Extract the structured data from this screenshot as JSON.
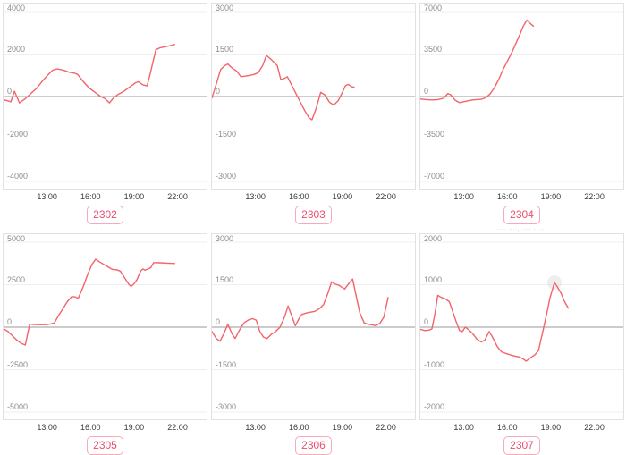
{
  "colors": {
    "series_line": "#f2646b",
    "zero_line": "#9a9a9a",
    "gridline": "#efefef",
    "plot_border": "#e2e2e2",
    "y_label_text": "#8c8c8c",
    "x_label_text": "#3a3a3a",
    "badge_text": "#e94f70",
    "badge_border": "#f6a9bf",
    "highlight_halo": "#d9d9d9"
  },
  "x_axis": {
    "range_hours": [
      10,
      24
    ],
    "ticks": [
      {
        "label": "13:00",
        "hour": 13
      },
      {
        "label": "16:00",
        "hour": 16
      },
      {
        "label": "19:00",
        "hour": 19
      },
      {
        "label": "22:00",
        "hour": 22
      }
    ]
  },
  "chart_data": [
    {
      "type": "line",
      "label": "2302",
      "caption": "·· ··",
      "ylim": [
        -4000,
        4000
      ],
      "yticks": [
        4000,
        2000,
        0,
        -2000,
        -4000
      ],
      "ytick_labels": [
        "4000",
        "2000",
        "0",
        "-2000",
        "-4000"
      ],
      "points": [
        [
          10.0,
          -150
        ],
        [
          10.3,
          -200
        ],
        [
          10.5,
          -250
        ],
        [
          10.75,
          250
        ],
        [
          11.1,
          -300
        ],
        [
          11.5,
          -100
        ],
        [
          11.9,
          150
        ],
        [
          12.3,
          400
        ],
        [
          12.7,
          750
        ],
        [
          13.1,
          1050
        ],
        [
          13.4,
          1250
        ],
        [
          13.7,
          1300
        ],
        [
          14.1,
          1250
        ],
        [
          14.5,
          1150
        ],
        [
          14.9,
          1100
        ],
        [
          15.1,
          1050
        ],
        [
          15.5,
          700
        ],
        [
          15.9,
          400
        ],
        [
          16.3,
          200
        ],
        [
          16.7,
          0
        ],
        [
          17.0,
          -100
        ],
        [
          17.3,
          -300
        ],
        [
          17.6,
          -50
        ],
        [
          17.9,
          100
        ],
        [
          18.3,
          250
        ],
        [
          18.7,
          450
        ],
        [
          19.1,
          650
        ],
        [
          19.3,
          700
        ],
        [
          19.6,
          550
        ],
        [
          19.9,
          500
        ],
        [
          20.1,
          1050
        ],
        [
          20.5,
          2200
        ],
        [
          20.8,
          2300
        ],
        [
          21.2,
          2350
        ],
        [
          21.5,
          2400
        ],
        [
          21.8,
          2450
        ]
      ]
    },
    {
      "type": "line",
      "label": "2303",
      "caption": "·· ··",
      "ylim": [
        -3000,
        3000
      ],
      "yticks": [
        3000,
        1500,
        0,
        -1500,
        -3000
      ],
      "ytick_labels": [
        "3000",
        "1500",
        "0",
        "-1500",
        "-3000"
      ],
      "points": [
        [
          10.0,
          -50
        ],
        [
          10.3,
          450
        ],
        [
          10.6,
          950
        ],
        [
          10.9,
          1100
        ],
        [
          11.1,
          1150
        ],
        [
          11.4,
          1000
        ],
        [
          11.7,
          900
        ],
        [
          12.0,
          700
        ],
        [
          12.3,
          720
        ],
        [
          12.6,
          750
        ],
        [
          12.9,
          780
        ],
        [
          13.2,
          850
        ],
        [
          13.5,
          1100
        ],
        [
          13.75,
          1450
        ],
        [
          14.0,
          1350
        ],
        [
          14.2,
          1250
        ],
        [
          14.5,
          1100
        ],
        [
          14.75,
          600
        ],
        [
          15.0,
          640
        ],
        [
          15.2,
          700
        ],
        [
          15.5,
          400
        ],
        [
          15.8,
          100
        ],
        [
          16.1,
          -200
        ],
        [
          16.4,
          -500
        ],
        [
          16.7,
          -750
        ],
        [
          16.9,
          -820
        ],
        [
          17.2,
          -400
        ],
        [
          17.5,
          150
        ],
        [
          17.8,
          50
        ],
        [
          18.1,
          -200
        ],
        [
          18.4,
          -300
        ],
        [
          18.7,
          -150
        ],
        [
          19.0,
          150
        ],
        [
          19.2,
          380
        ],
        [
          19.4,
          430
        ],
        [
          19.65,
          340
        ],
        [
          19.8,
          330
        ]
      ]
    },
    {
      "type": "line",
      "label": "2304",
      "caption": "·· ··",
      "ylim": [
        -7000,
        7000
      ],
      "yticks": [
        7000,
        3500,
        0,
        -3500,
        -7000
      ],
      "ytick_labels": [
        "7000",
        "3500",
        "0",
        "-3500",
        "-7000"
      ],
      "points": [
        [
          10.0,
          -200
        ],
        [
          10.4,
          -250
        ],
        [
          10.8,
          -280
        ],
        [
          11.2,
          -250
        ],
        [
          11.6,
          -150
        ],
        [
          11.9,
          250
        ],
        [
          12.1,
          150
        ],
        [
          12.4,
          -300
        ],
        [
          12.7,
          -500
        ],
        [
          13.0,
          -430
        ],
        [
          13.3,
          -350
        ],
        [
          13.6,
          -280
        ],
        [
          13.9,
          -250
        ],
        [
          14.2,
          -230
        ],
        [
          14.5,
          -100
        ],
        [
          14.8,
          200
        ],
        [
          15.1,
          700
        ],
        [
          15.4,
          1400
        ],
        [
          15.7,
          2200
        ],
        [
          16.0,
          2900
        ],
        [
          16.3,
          3600
        ],
        [
          16.6,
          4400
        ],
        [
          16.9,
          5200
        ],
        [
          17.1,
          5800
        ],
        [
          17.35,
          6300
        ],
        [
          17.6,
          6000
        ],
        [
          17.8,
          5800
        ]
      ]
    },
    {
      "type": "line",
      "label": "2305",
      "caption": "· ·",
      "ylim": [
        -5000,
        5000
      ],
      "yticks": [
        5000,
        2500,
        0,
        -2500,
        -5000
      ],
      "ytick_labels": [
        "5000",
        "2500",
        "0",
        "-2500",
        "-5000"
      ],
      "points": [
        [
          10.0,
          -100
        ],
        [
          10.3,
          -250
        ],
        [
          10.6,
          -500
        ],
        [
          10.9,
          -750
        ],
        [
          11.2,
          -950
        ],
        [
          11.5,
          -1050
        ],
        [
          11.8,
          180
        ],
        [
          12.1,
          160
        ],
        [
          12.5,
          150
        ],
        [
          12.9,
          150
        ],
        [
          13.2,
          180
        ],
        [
          13.5,
          250
        ],
        [
          13.8,
          700
        ],
        [
          14.1,
          1100
        ],
        [
          14.4,
          1500
        ],
        [
          14.7,
          1800
        ],
        [
          14.95,
          1780
        ],
        [
          15.15,
          1700
        ],
        [
          15.5,
          2400
        ],
        [
          15.8,
          3100
        ],
        [
          16.1,
          3700
        ],
        [
          16.35,
          4000
        ],
        [
          16.6,
          3850
        ],
        [
          16.9,
          3700
        ],
        [
          17.2,
          3550
        ],
        [
          17.5,
          3400
        ],
        [
          17.8,
          3380
        ],
        [
          18.05,
          3300
        ],
        [
          18.35,
          2900
        ],
        [
          18.65,
          2500
        ],
        [
          18.8,
          2400
        ],
        [
          19.0,
          2550
        ],
        [
          19.2,
          2800
        ],
        [
          19.45,
          3300
        ],
        [
          19.6,
          3420
        ],
        [
          19.75,
          3350
        ],
        [
          19.95,
          3420
        ],
        [
          20.15,
          3500
        ],
        [
          20.35,
          3800
        ],
        [
          20.8,
          3790
        ],
        [
          21.3,
          3770
        ],
        [
          21.8,
          3750
        ]
      ]
    },
    {
      "type": "line",
      "label": "2306",
      "caption": "· ·",
      "ylim": [
        -3000,
        3000
      ],
      "yticks": [
        3000,
        1500,
        0,
        -1500,
        -3000
      ],
      "ytick_labels": [
        "3000",
        "1500",
        "0",
        "-1500",
        "-3000"
      ],
      "points": [
        [
          10.0,
          -150
        ],
        [
          10.3,
          -400
        ],
        [
          10.55,
          -500
        ],
        [
          10.8,
          -250
        ],
        [
          11.1,
          100
        ],
        [
          11.4,
          -250
        ],
        [
          11.6,
          -400
        ],
        [
          11.9,
          -100
        ],
        [
          12.2,
          150
        ],
        [
          12.5,
          250
        ],
        [
          12.8,
          300
        ],
        [
          13.05,
          250
        ],
        [
          13.3,
          -150
        ],
        [
          13.55,
          -350
        ],
        [
          13.8,
          -400
        ],
        [
          14.1,
          -250
        ],
        [
          14.4,
          -150
        ],
        [
          14.7,
          0
        ],
        [
          15.0,
          350
        ],
        [
          15.25,
          750
        ],
        [
          15.5,
          400
        ],
        [
          15.75,
          50
        ],
        [
          16.0,
          300
        ],
        [
          16.2,
          450
        ],
        [
          16.5,
          500
        ],
        [
          16.8,
          530
        ],
        [
          17.1,
          560
        ],
        [
          17.4,
          650
        ],
        [
          17.7,
          800
        ],
        [
          18.0,
          1200
        ],
        [
          18.25,
          1600
        ],
        [
          18.5,
          1520
        ],
        [
          18.75,
          1480
        ],
        [
          19.0,
          1400
        ],
        [
          19.15,
          1350
        ],
        [
          19.45,
          1550
        ],
        [
          19.7,
          1700
        ],
        [
          19.95,
          1100
        ],
        [
          20.2,
          500
        ],
        [
          20.5,
          150
        ],
        [
          20.8,
          100
        ],
        [
          21.1,
          80
        ],
        [
          21.3,
          50
        ],
        [
          21.6,
          150
        ],
        [
          21.85,
          350
        ],
        [
          22.15,
          1050
        ]
      ]
    },
    {
      "type": "line",
      "label": "2307",
      "caption": "···· ····, ···· ·· ··",
      "ylim": [
        -2000,
        2000
      ],
      "yticks": [
        2000,
        1000,
        0,
        -1000,
        -2000
      ],
      "ytick_labels": [
        "2000",
        "1000",
        "0",
        "-1000",
        "-2000"
      ],
      "highlight_point": [
        19.25,
        1050
      ],
      "points": [
        [
          10.0,
          -50
        ],
        [
          10.3,
          -80
        ],
        [
          10.6,
          -70
        ],
        [
          10.8,
          -40
        ],
        [
          11.0,
          300
        ],
        [
          11.2,
          750
        ],
        [
          11.45,
          700
        ],
        [
          11.7,
          670
        ],
        [
          12.0,
          600
        ],
        [
          12.2,
          400
        ],
        [
          12.45,
          150
        ],
        [
          12.7,
          -80
        ],
        [
          12.9,
          -100
        ],
        [
          13.1,
          0
        ],
        [
          13.3,
          -50
        ],
        [
          13.6,
          -150
        ],
        [
          13.9,
          -280
        ],
        [
          14.2,
          -350
        ],
        [
          14.45,
          -300
        ],
        [
          14.75,
          -100
        ],
        [
          15.0,
          -250
        ],
        [
          15.3,
          -450
        ],
        [
          15.6,
          -580
        ],
        [
          15.9,
          -620
        ],
        [
          16.2,
          -650
        ],
        [
          16.5,
          -680
        ],
        [
          16.8,
          -700
        ],
        [
          17.1,
          -750
        ],
        [
          17.3,
          -800
        ],
        [
          17.6,
          -720
        ],
        [
          17.9,
          -650
        ],
        [
          18.15,
          -550
        ],
        [
          18.45,
          -100
        ],
        [
          18.7,
          300
        ],
        [
          18.95,
          700
        ],
        [
          19.25,
          1050
        ],
        [
          19.45,
          950
        ],
        [
          19.7,
          800
        ],
        [
          19.95,
          600
        ],
        [
          20.2,
          450
        ]
      ]
    }
  ]
}
